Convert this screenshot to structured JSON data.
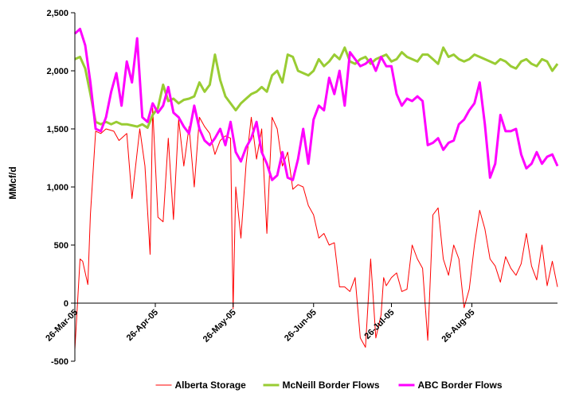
{
  "chart_data": {
    "type": "line",
    "title": "",
    "xlabel": "",
    "ylabel": "MMcf/d",
    "ylim": [
      -500,
      2500
    ],
    "yticks": [
      "-500",
      "0",
      "500",
      "1,000",
      "1,500",
      "2,000",
      "2,500"
    ],
    "ytick_values": [
      -500,
      0,
      500,
      1000,
      1500,
      2000,
      2500
    ],
    "xticks": [
      "26-Mar-05",
      "26-Apr-05",
      "26-May-05",
      "26-Jun-05",
      "26-Jul-05",
      "26-Aug-05"
    ],
    "xtick_values": [
      0,
      31,
      61,
      92,
      122,
      153
    ],
    "xlim": [
      0,
      186
    ],
    "grid": false,
    "legend_position": "bottom",
    "series": [
      {
        "name": "Alberta Storage",
        "color": "#ff0000",
        "width": 1,
        "x": [
          0,
          2,
          3,
          5,
          6,
          8,
          10,
          12,
          15,
          17,
          20,
          22,
          25,
          27,
          29,
          30,
          32,
          34,
          36,
          38,
          40,
          42,
          44,
          46,
          48,
          50,
          52,
          54,
          56,
          58,
          60,
          61,
          62,
          64,
          66,
          68,
          70,
          72,
          74,
          76,
          78,
          80,
          82,
          84,
          86,
          88,
          90,
          92,
          94,
          96,
          98,
          100,
          102,
          104,
          106,
          108,
          110,
          112,
          114,
          116,
          118,
          119,
          120,
          122,
          124,
          126,
          128,
          130,
          132,
          134,
          136,
          138,
          140,
          142,
          144,
          146,
          148,
          150,
          152,
          154,
          156,
          158,
          160,
          162,
          164,
          166,
          168,
          170,
          172,
          174,
          176,
          178,
          180,
          182,
          184,
          186
        ],
        "values": [
          -400,
          380,
          360,
          160,
          760,
          1480,
          1460,
          1500,
          1480,
          1400,
          1460,
          900,
          1500,
          1180,
          420,
          1680,
          740,
          700,
          1420,
          720,
          1580,
          1180,
          1520,
          1000,
          1600,
          1520,
          1460,
          1280,
          1400,
          1440,
          1420,
          -50,
          1000,
          560,
          1200,
          1600,
          1240,
          1500,
          600,
          1600,
          1500,
          1180,
          1300,
          980,
          1020,
          1000,
          840,
          760,
          560,
          600,
          500,
          520,
          140,
          140,
          100,
          220,
          -300,
          -380,
          380,
          -300,
          -100,
          220,
          150,
          220,
          260,
          100,
          120,
          500,
          380,
          300,
          -320,
          760,
          820,
          380,
          240,
          500,
          380,
          -40,
          120,
          500,
          800,
          640,
          380,
          320,
          180,
          400,
          300,
          240,
          340,
          600,
          320,
          200,
          500,
          150,
          360,
          140
        ]
      },
      {
        "name": "McNeill Border Flows",
        "color": "#99cc33",
        "width": 3,
        "x": [
          0,
          2,
          4,
          6,
          8,
          10,
          12,
          14,
          16,
          18,
          20,
          22,
          24,
          26,
          28,
          30,
          32,
          34,
          36,
          38,
          40,
          42,
          44,
          46,
          48,
          50,
          52,
          54,
          56,
          58,
          60,
          62,
          64,
          66,
          68,
          70,
          72,
          74,
          76,
          78,
          80,
          82,
          84,
          86,
          88,
          90,
          92,
          94,
          96,
          98,
          100,
          102,
          104,
          106,
          108,
          110,
          112,
          114,
          116,
          118,
          120,
          122,
          124,
          126,
          128,
          130,
          132,
          134,
          136,
          138,
          140,
          142,
          144,
          146,
          148,
          150,
          152,
          154,
          156,
          158,
          160,
          162,
          164,
          166,
          168,
          170,
          172,
          174,
          176,
          178,
          180,
          182,
          184,
          186
        ],
        "values": [
          2100,
          2120,
          2020,
          1800,
          1560,
          1540,
          1560,
          1540,
          1560,
          1540,
          1540,
          1530,
          1520,
          1540,
          1510,
          1620,
          1680,
          1880,
          1740,
          1760,
          1720,
          1750,
          1760,
          1780,
          1900,
          1820,
          1880,
          2140,
          1920,
          1780,
          1720,
          1660,
          1720,
          1760,
          1800,
          1820,
          1860,
          1820,
          1960,
          2000,
          1900,
          2140,
          2120,
          2000,
          1980,
          1960,
          2000,
          2100,
          2040,
          2080,
          2140,
          2100,
          2200,
          2080,
          2060,
          2100,
          2120,
          2060,
          2100,
          2120,
          2140,
          2080,
          2100,
          2160,
          2120,
          2100,
          2080,
          2140,
          2140,
          2100,
          2060,
          2200,
          2120,
          2140,
          2100,
          2080,
          2100,
          2140,
          2120,
          2100,
          2080,
          2060,
          2100,
          2080,
          2040,
          2020,
          2080,
          2100,
          2060,
          2040,
          2100,
          2080,
          2000,
          2060
        ]
      },
      {
        "name": "ABC Border Flows",
        "color": "#ff00ff",
        "width": 3,
        "x": [
          0,
          2,
          4,
          6,
          8,
          10,
          12,
          14,
          16,
          18,
          20,
          22,
          24,
          26,
          28,
          30,
          32,
          34,
          36,
          38,
          40,
          42,
          44,
          46,
          48,
          50,
          52,
          54,
          56,
          58,
          60,
          62,
          64,
          66,
          68,
          70,
          72,
          74,
          76,
          78,
          80,
          82,
          84,
          86,
          88,
          90,
          92,
          94,
          96,
          98,
          100,
          102,
          104,
          106,
          108,
          110,
          112,
          114,
          116,
          118,
          120,
          122,
          124,
          126,
          128,
          130,
          132,
          134,
          136,
          138,
          140,
          142,
          144,
          146,
          148,
          150,
          152,
          154,
          156,
          158,
          160,
          162,
          164,
          166,
          168,
          170,
          172,
          174,
          176,
          178,
          180,
          182,
          184,
          186
        ],
        "values": [
          2320,
          2360,
          2220,
          1900,
          1500,
          1480,
          1600,
          1820,
          1980,
          1700,
          2080,
          1900,
          2280,
          1600,
          1560,
          1720,
          1640,
          1700,
          1860,
          1640,
          1600,
          1520,
          1460,
          1700,
          1500,
          1400,
          1360,
          1420,
          1500,
          1360,
          1560,
          1300,
          1220,
          1340,
          1420,
          1560,
          1300,
          1200,
          1060,
          1100,
          1300,
          1080,
          1060,
          1240,
          1500,
          1200,
          1580,
          1700,
          1660,
          1940,
          1800,
          2000,
          1700,
          2160,
          2100,
          2040,
          2060,
          2100,
          2000,
          2120,
          2040,
          2040,
          1800,
          1700,
          1760,
          1740,
          1780,
          1740,
          1360,
          1380,
          1420,
          1320,
          1380,
          1400,
          1540,
          1580,
          1660,
          1720,
          1900,
          1540,
          1080,
          1200,
          1620,
          1480,
          1480,
          1500,
          1280,
          1160,
          1200,
          1300,
          1200,
          1260,
          1280,
          1180
        ]
      }
    ]
  }
}
